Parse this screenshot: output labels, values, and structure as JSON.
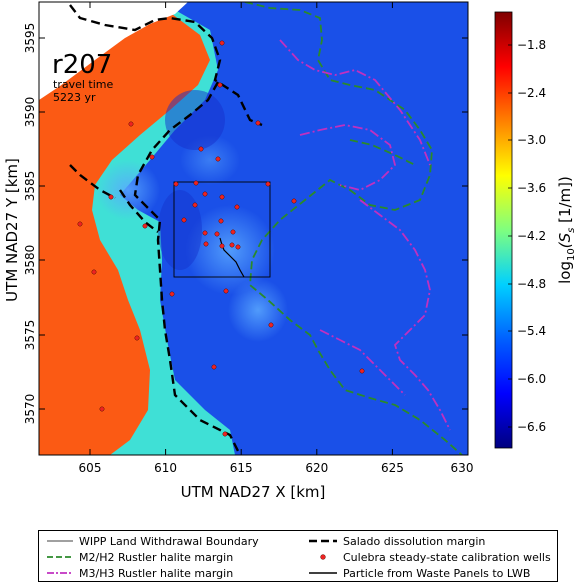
{
  "map": {
    "run_label": "r207",
    "travel_time_label": "travel time",
    "travel_time_value": "5223 yr",
    "x_axis": {
      "title": "UTM NAD27 X [km]",
      "range": [
        601.5,
        630
      ],
      "ticks": [
        "605",
        "610",
        "615",
        "620",
        "625",
        "630"
      ]
    },
    "y_axis": {
      "title": "UTM NAD27 Y [km]",
      "range": [
        3566.5,
        3597
      ],
      "ticks": [
        "3570",
        "3575",
        "3580",
        "3585",
        "3590",
        "3595"
      ]
    },
    "colorbar": {
      "title": "log10(Ss [1/m])",
      "title_main": "log",
      "title_sub": "10",
      "title_rest": "(S",
      "title_s_sub": "s",
      "title_unit": " [1/m])",
      "range": [
        -6.9,
        -1.5
      ],
      "ticks": [
        "−1.8",
        "−2.4",
        "−3.0",
        "−3.6",
        "−4.2",
        "−4.8",
        "−5.4",
        "−6.0",
        "−6.6"
      ],
      "colors": [
        "#00007f",
        "#0000ff",
        "#007fff",
        "#00ffff",
        "#7fff7f",
        "#ffff00",
        "#ff7f00",
        "#ff0000",
        "#7f0000"
      ]
    },
    "zone_colors": {
      "background": "#1a50e8",
      "cyan_band": "#3fe0d6",
      "orange_zone": "#fb5a14",
      "inner_blue": "#1530cc",
      "light_patch": "#3a86f0"
    },
    "line_colors": {
      "salado": "#000000",
      "m2h2": "#2a8a2a",
      "m3h3": "#c030c0",
      "wells": "#ee2222"
    }
  },
  "legend": {
    "items": [
      {
        "label": "WIPP Land Withdrawal Boundary",
        "symbol": "thin-line"
      },
      {
        "label": "Salado dissolution margin",
        "symbol": "black-dash"
      },
      {
        "label": "M2/H2 Rustler halite margin",
        "symbol": "green-dash"
      },
      {
        "label": "Culebra steady-state calibration wells",
        "symbol": "red-dot"
      },
      {
        "label": "M3/H3 Rustler halite margin",
        "symbol": "magenta-dashdot"
      },
      {
        "label": "Particle from Waste Panels to LWB",
        "symbol": "solid-line"
      }
    ]
  }
}
